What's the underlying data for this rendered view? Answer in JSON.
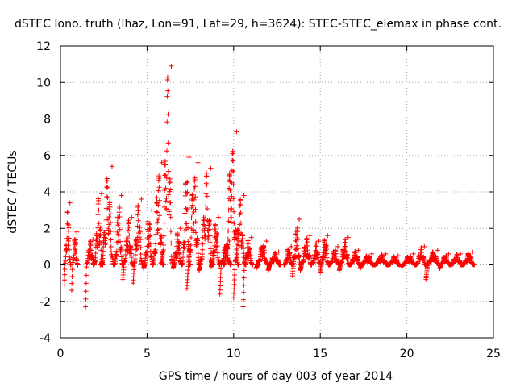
{
  "chart_data": {
    "type": "scatter",
    "title": "dSTEC Iono. truth (lhaz, Lon=91, Lat=29, h=3624): STEC-STEC_elemax in phase cont.",
    "xlabel": "GPS time / hours of day 003 of year 2014",
    "ylabel": "dSTEC  / TECUs",
    "xlim": [
      0,
      25
    ],
    "ylim": [
      -4,
      12
    ],
    "xticks": [
      0,
      5,
      10,
      15,
      20,
      25
    ],
    "yticks": [
      -4,
      -2,
      0,
      2,
      4,
      6,
      8,
      10,
      12
    ],
    "grid": true,
    "legend": "none",
    "marker": "plus",
    "color": "#ff0000",
    "series": [
      {
        "arcs": [
          {
            "start": 0.22,
            "end": 0.6,
            "min": -1.1,
            "max": 3.4
          },
          {
            "start": 0.65,
            "end": 1.0,
            "min": -1.4,
            "max": 1.8
          },
          {
            "start": 1.45,
            "end": 1.95,
            "min": -2.3,
            "max": 1.4
          },
          {
            "start": 1.9,
            "end": 2.45,
            "min": 0.0,
            "max": 3.9
          },
          {
            "start": 2.3,
            "end": 3.1,
            "min": 0.0,
            "max": 5.4
          },
          {
            "start": 3.1,
            "end": 3.6,
            "min": 0.0,
            "max": 3.8
          },
          {
            "start": 3.6,
            "end": 4.2,
            "min": -0.8,
            "max": 2.6
          },
          {
            "start": 4.2,
            "end": 4.75,
            "min": -1.0,
            "max": 3.6
          },
          {
            "start": 4.8,
            "end": 5.35,
            "min": -0.2,
            "max": 3.0
          },
          {
            "start": 5.3,
            "end": 5.95,
            "min": 0.0,
            "max": 5.6
          },
          {
            "start": 5.8,
            "end": 6.5,
            "min": 0.1,
            "max": 10.9
          },
          {
            "start": 6.5,
            "end": 7.0,
            "min": -0.2,
            "max": 2.0
          },
          {
            "start": 7.0,
            "end": 7.5,
            "min": 0.0,
            "max": 5.9
          },
          {
            "start": 7.3,
            "end": 8.05,
            "min": -1.3,
            "max": 5.6
          },
          {
            "start": 8.0,
            "end": 8.8,
            "min": -0.3,
            "max": 5.3
          },
          {
            "start": 8.7,
            "end": 9.2,
            "min": -0.1,
            "max": 2.6
          },
          {
            "start": 9.2,
            "end": 9.85,
            "min": -1.6,
            "max": 1.3
          },
          {
            "start": 9.4,
            "end": 10.3,
            "min": 0.0,
            "max": 7.3
          },
          {
            "start": 10.0,
            "end": 10.7,
            "min": -1.8,
            "max": 3.8
          },
          {
            "start": 10.55,
            "end": 11.1,
            "min": -2.3,
            "max": 1.5
          },
          {
            "start": 11.3,
            "end": 12.0,
            "min": -0.2,
            "max": 1.3
          },
          {
            "start": 12.0,
            "end": 12.7,
            "min": -0.3,
            "max": 0.7
          },
          {
            "start": 12.9,
            "end": 13.4,
            "min": 0.0,
            "max": 1.0
          },
          {
            "start": 13.4,
            "end": 13.85,
            "min": -0.6,
            "max": 2.5
          },
          {
            "start": 13.85,
            "end": 14.5,
            "min": -0.3,
            "max": 1.6
          },
          {
            "start": 14.5,
            "end": 15.0,
            "min": 0.1,
            "max": 1.3
          },
          {
            "start": 15.0,
            "end": 15.5,
            "min": -0.4,
            "max": 1.6
          },
          {
            "start": 15.5,
            "end": 16.1,
            "min": 0.0,
            "max": 1.0
          },
          {
            "start": 16.1,
            "end": 16.7,
            "min": -0.3,
            "max": 1.5
          },
          {
            "start": 16.7,
            "end": 17.3,
            "min": 0.0,
            "max": 0.8
          },
          {
            "start": 17.3,
            "end": 18.1,
            "min": -0.2,
            "max": 0.6
          },
          {
            "start": 18.1,
            "end": 18.9,
            "min": 0.0,
            "max": 0.6
          },
          {
            "start": 18.9,
            "end": 19.6,
            "min": 0.0,
            "max": 0.5
          },
          {
            "start": 19.7,
            "end": 20.5,
            "min": -0.1,
            "max": 0.6
          },
          {
            "start": 20.5,
            "end": 21.1,
            "min": 0.0,
            "max": 1.0
          },
          {
            "start": 21.1,
            "end": 21.9,
            "min": -0.8,
            "max": 0.8
          },
          {
            "start": 21.9,
            "end": 22.5,
            "min": -0.2,
            "max": 0.6
          },
          {
            "start": 22.5,
            "end": 23.2,
            "min": 0.0,
            "max": 0.6
          },
          {
            "start": 23.2,
            "end": 23.9,
            "min": 0.0,
            "max": 0.7
          }
        ]
      }
    ]
  }
}
